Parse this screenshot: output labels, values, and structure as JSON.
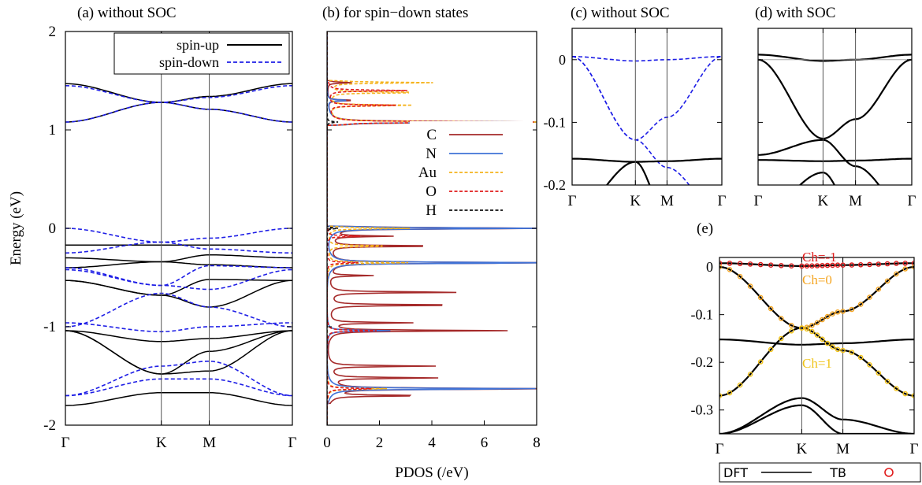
{
  "figure": {
    "ylabel": "Energy (eV)",
    "pdos_xlabel": "PDOS (/eV)"
  },
  "chart_data": [
    {
      "id": "a",
      "type": "line",
      "title": "(a) without SOC",
      "ylabel": "Energy (eV)",
      "xticks": [
        "Γ",
        "K",
        "M",
        "Γ"
      ],
      "yticks": [
        "2",
        "1",
        "0",
        "-1",
        "-2"
      ],
      "ylim": [
        -2,
        2
      ],
      "legend": {
        "position": "top-right",
        "entries": [
          "spin-up",
          "spin-down"
        ]
      },
      "series": [
        {
          "name": "spin-up",
          "style": "solid",
          "color": "#000000",
          "bands": [
            [
              1.08,
              1.28,
              1.21,
              1.08
            ],
            [
              1.47,
              1.28,
              1.34,
              1.47
            ],
            [
              -0.17,
              -0.17,
              -0.17,
              -0.17
            ],
            [
              -0.3,
              -0.34,
              -0.27,
              -0.3
            ],
            [
              -0.4,
              -0.34,
              -0.37,
              -0.4
            ],
            [
              -0.53,
              -0.68,
              -0.52,
              -0.53
            ],
            [
              -0.53,
              -0.68,
              -0.8,
              -0.53
            ],
            [
              -1.04,
              -1.15,
              -1.12,
              -1.04
            ],
            [
              -1.04,
              -1.48,
              -1.45,
              -1.04
            ],
            [
              -1.04,
              -1.48,
              -1.25,
              -1.04
            ],
            [
              -1.8,
              -1.67,
              -1.67,
              -1.8
            ]
          ]
        },
        {
          "name": "spin-down",
          "style": "dashed",
          "color": "#1e1ee6",
          "bands": [
            [
              1.08,
              1.28,
              1.21,
              1.08
            ],
            [
              1.45,
              1.28,
              1.33,
              1.45
            ],
            [
              0.0,
              -0.14,
              -0.1,
              0.0
            ],
            [
              -0.25,
              -0.14,
              -0.21,
              -0.25
            ],
            [
              -0.4,
              -0.58,
              -0.38,
              -0.4
            ],
            [
              -0.42,
              -0.58,
              -0.62,
              -0.42
            ],
            [
              -0.96,
              -1.05,
              -1.0,
              -0.96
            ],
            [
              -1.0,
              -0.66,
              -0.8,
              -1.0
            ],
            [
              -1.7,
              -1.4,
              -1.35,
              -1.7
            ],
            [
              -1.7,
              -1.53,
              -1.53,
              -1.7
            ]
          ]
        }
      ]
    },
    {
      "id": "b",
      "type": "line",
      "title": "(b) for spin−down states",
      "xlabel": "PDOS (/eV)",
      "xticks": [
        "0",
        "2",
        "4",
        "6",
        "8"
      ],
      "xlim": [
        0,
        8
      ],
      "ylim": [
        -2,
        2
      ],
      "legend": {
        "position": "right",
        "entries": [
          "C",
          "N",
          "Au",
          "O",
          "H"
        ]
      },
      "series": [
        {
          "name": "C",
          "color": "#a52a2a",
          "style": "solid",
          "peaks": [
            [
              1.08,
              9.0
            ],
            [
              1.48,
              0.9
            ],
            [
              1.3,
              1.0
            ],
            [
              0.0,
              9.0
            ],
            [
              -0.08,
              2.2
            ],
            [
              -0.18,
              4.1
            ],
            [
              -0.35,
              9.0
            ],
            [
              -0.48,
              1.6
            ],
            [
              -0.65,
              4.9
            ],
            [
              -0.78,
              5.0
            ],
            [
              -0.96,
              3.0
            ],
            [
              -1.04,
              6.5
            ],
            [
              -1.4,
              3.9
            ],
            [
              -1.52,
              3.9
            ],
            [
              -1.63,
              9.0
            ],
            [
              -1.7,
              3.4
            ]
          ]
        },
        {
          "name": "N",
          "color": "#3f72d6",
          "style": "solid",
          "peaks": [
            [
              1.08,
              8.5
            ],
            [
              1.3,
              0.8
            ],
            [
              0.0,
              8.5
            ],
            [
              -0.35,
              9.0
            ],
            [
              -1.04,
              2.3
            ],
            [
              -1.63,
              8.0
            ]
          ]
        },
        {
          "name": "Au",
          "color": "#f5b31c",
          "style": "dashed",
          "peaks": [
            [
              1.08,
              8.0
            ],
            [
              1.38,
              3.5
            ],
            [
              1.48,
              3.8
            ],
            [
              1.25,
              3.2
            ],
            [
              0.0,
              3.0
            ],
            [
              -0.18,
              2.4
            ],
            [
              -0.35,
              3.1
            ],
            [
              -1.63,
              2.3
            ]
          ]
        },
        {
          "name": "O",
          "color": "#e01b1b",
          "style": "dashed",
          "peaks": [
            [
              1.08,
              7.5
            ],
            [
              1.4,
              2.9
            ],
            [
              1.25,
              2.6
            ],
            [
              -0.08,
              1.2
            ],
            [
              -0.35,
              1.2
            ],
            [
              -1.04,
              1.8
            ],
            [
              -1.63,
              1.7
            ]
          ]
        },
        {
          "name": "H",
          "color": "#111111",
          "style": "dashed",
          "peaks": [
            [
              1.08,
              0.4
            ],
            [
              0.0,
              0.4
            ]
          ]
        }
      ]
    },
    {
      "id": "c",
      "type": "line",
      "title": "(c) without SOC",
      "xticks": [
        "Γ",
        "K",
        "M",
        "Γ"
      ],
      "yticks": [
        "0",
        "-0.1",
        "-0.2"
      ],
      "ylim": [
        -0.2,
        0.05
      ],
      "series": [
        {
          "name": "",
          "style": "dashed",
          "color": "#1e1ee6",
          "bands": [
            [
              0.005,
              -0.002,
              0.0,
              0.005
            ],
            [
              0.005,
              -0.128,
              -0.092,
              0.005
            ],
            [
              0.005,
              -0.128,
              -0.172,
              -0.25
            ]
          ]
        },
        {
          "name": "",
          "style": "solid",
          "color": "#000000",
          "bands": [
            [
              -0.158,
              -0.163,
              -0.162,
              -0.158
            ],
            [
              -0.25,
              -0.163,
              -0.25,
              -0.25
            ]
          ]
        }
      ]
    },
    {
      "id": "d",
      "type": "line",
      "title": "(d) with SOC",
      "xticks": [
        "Γ",
        "K",
        "M",
        "Γ"
      ],
      "ylim": [
        -0.2,
        0.05
      ],
      "series": [
        {
          "name": "",
          "style": "solid",
          "color": "#000000",
          "bands": [
            [
              0.008,
              -0.002,
              0.0,
              0.008
            ],
            [
              0.0,
              -0.126,
              -0.095,
              0.0
            ],
            [
              -0.152,
              -0.128,
              -0.17,
              -0.25
            ],
            [
              -0.16,
              -0.162,
              -0.161,
              -0.158
            ],
            [
              -0.25,
              -0.18,
              -0.25,
              -0.25
            ]
          ]
        }
      ]
    },
    {
      "id": "e",
      "type": "line",
      "title": "(e)",
      "xticks": [
        "Γ",
        "K",
        "M",
        "Γ"
      ],
      "yticks": [
        "0",
        "-0.1",
        "-0.2",
        "-0.3"
      ],
      "ylim": [
        -0.35,
        0.02
      ],
      "annotations": [
        "Ch=-1",
        "Ch=0",
        "Ch=1"
      ],
      "legend": {
        "position": "bottom",
        "entries": [
          "DFT",
          "TB"
        ]
      },
      "series": [
        {
          "name": "DFT",
          "style": "solid",
          "color": "#000000",
          "bands": [
            [
              0.008,
              0.002,
              0.004,
              0.008
            ],
            [
              0.0,
              -0.128,
              -0.093,
              0.0
            ],
            [
              -0.27,
              -0.128,
              -0.175,
              -0.27
            ],
            [
              -0.152,
              -0.163,
              -0.16,
              -0.152
            ],
            [
              -0.35,
              -0.275,
              -0.32,
              -0.35
            ],
            [
              -0.35,
              -0.29,
              -0.35,
              -0.35
            ]
          ]
        },
        {
          "name": "TB",
          "style": "markers",
          "colors": [
            "#e01b1b",
            "#f5a623",
            "#f5c518"
          ],
          "bands": [
            [
              0.008,
              0.002,
              0.004,
              0.008
            ],
            [
              0.0,
              -0.128,
              -0.093,
              0.0
            ],
            [
              -0.27,
              -0.128,
              -0.175,
              -0.27
            ]
          ]
        }
      ]
    }
  ]
}
